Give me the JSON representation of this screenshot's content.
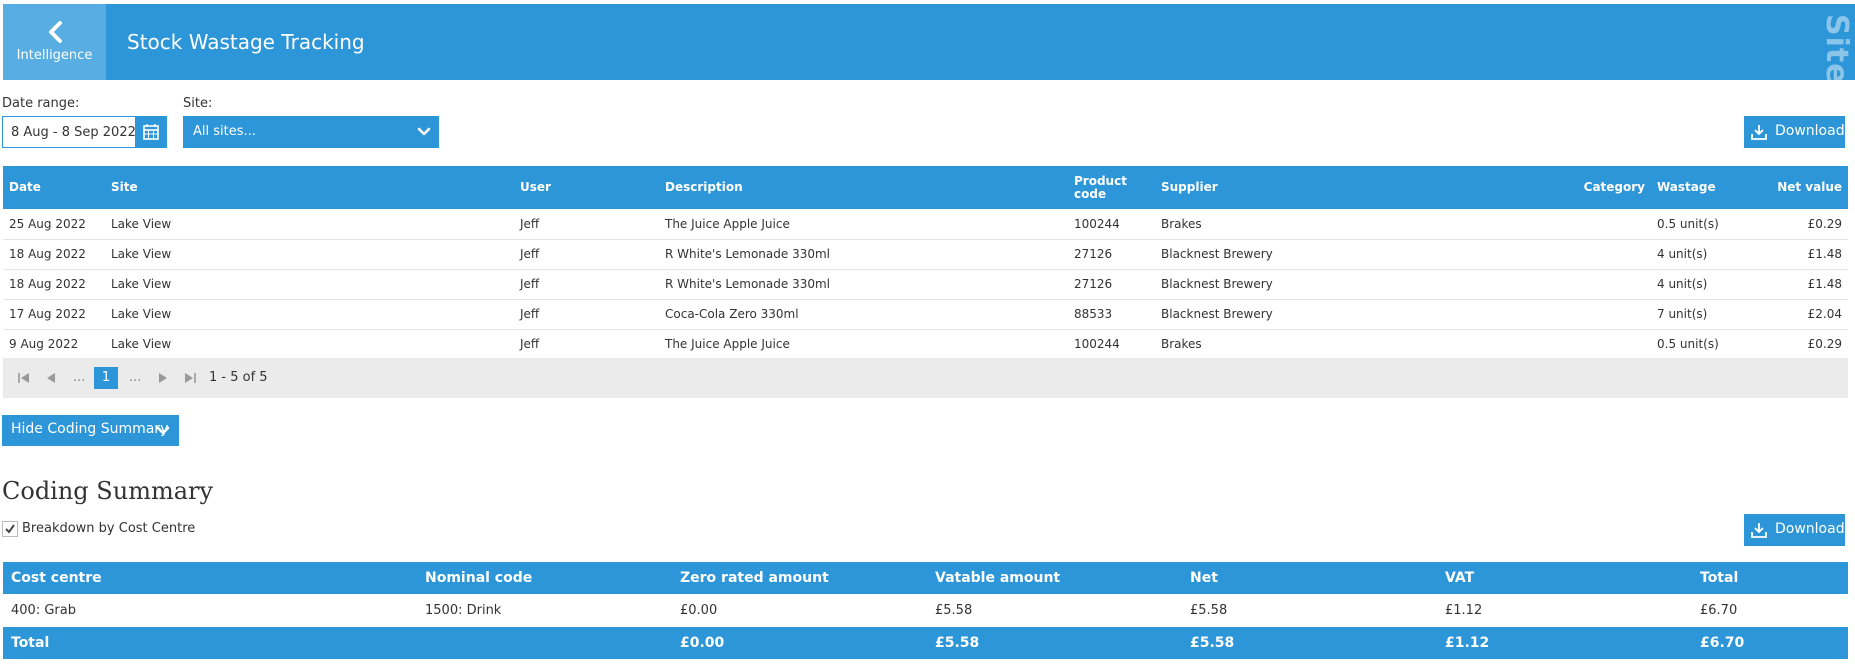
{
  "header": {
    "back_label": "Intelligence",
    "title": "Stock Wastage Tracking",
    "watermark": "© Demo Site"
  },
  "filters": {
    "date_range_label": "Date range:",
    "date_range_value": "8 Aug - 8 Sep 2022",
    "site_label": "Site:",
    "site_value": "All sites..."
  },
  "download_label": "Download",
  "wastage_table": {
    "columns": [
      "Date",
      "Site",
      "User",
      "Description",
      "Product code",
      "Supplier",
      "Category",
      "Wastage",
      "Net value"
    ],
    "rows": [
      [
        "25 Aug 2022",
        "Lake View",
        "Jeff",
        "The Juice Apple Juice",
        "100244",
        "Brakes",
        "",
        "0.5 unit(s)",
        "£0.29"
      ],
      [
        "18 Aug 2022",
        "Lake View",
        "Jeff",
        "R White's Lemonade 330ml",
        "27126",
        "Blacknest Brewery",
        "",
        "4 unit(s)",
        "£1.48"
      ],
      [
        "18 Aug 2022",
        "Lake View",
        "Jeff",
        "R White's Lemonade 330ml",
        "27126",
        "Blacknest Brewery",
        "",
        "4 unit(s)",
        "£1.48"
      ],
      [
        "17 Aug 2022",
        "Lake View",
        "Jeff",
        "Coca-Cola Zero 330ml",
        "88533",
        "Blacknest Brewery",
        "",
        "7 unit(s)",
        "£2.04"
      ],
      [
        "9 Aug 2022",
        "Lake View",
        "Jeff",
        "The Juice Apple Juice",
        "100244",
        "Brakes",
        "",
        "0.5 unit(s)",
        "£0.29"
      ]
    ]
  },
  "pager": {
    "ellipsis": "...",
    "current_page": "1",
    "info": "1 - 5 of 5"
  },
  "hide_summary_label": "Hide Coding Summary",
  "coding_summary": {
    "title": "Coding Summary",
    "breakdown_label": "Breakdown by Cost Centre",
    "breakdown_checked": true,
    "columns": [
      "Cost centre",
      "Nominal code",
      "Zero rated amount",
      "Vatable amount",
      "Net",
      "VAT",
      "Total"
    ],
    "rows": [
      [
        "400: Grab",
        "1500: Drink",
        "£0.00",
        "£5.58",
        "£5.58",
        "£1.12",
        "£6.70"
      ]
    ],
    "total_row": [
      "Total",
      "",
      "£0.00",
      "£5.58",
      "£5.58",
      "£1.12",
      "£6.70"
    ]
  },
  "colors": {
    "primary": "#2d96d8",
    "back_button": "#58ade2",
    "pager_bg": "#ebebeb"
  }
}
